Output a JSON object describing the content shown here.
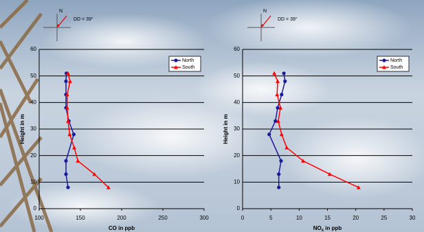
{
  "charts": [
    {
      "type": "line",
      "compass_label": "N",
      "compass_text": "DD = 39°",
      "x_label": "CO in ppb",
      "y_label": "Height in m",
      "xlim": [
        100,
        300
      ],
      "xticks": [
        100,
        150,
        200,
        250,
        300
      ],
      "ylim": [
        0,
        60
      ],
      "yticks": [
        0,
        10,
        20,
        30,
        40,
        50,
        60
      ],
      "grid": true,
      "legend": "top-right",
      "series": [
        {
          "name": "North",
          "color": "#1a1a9c",
          "marker": "circle",
          "x": [
            133,
            132.5,
            132.5,
            132.5,
            136,
            142,
            132.5,
            132.5,
            135
          ],
          "y": [
            51,
            48,
            43,
            38,
            33,
            28,
            18,
            13,
            8
          ]
        },
        {
          "name": "South",
          "color": "#ff0000",
          "marker": "triangle",
          "x": [
            135,
            137.5,
            134,
            134,
            135,
            137,
            142.5,
            147,
            167,
            184
          ],
          "y": [
            51,
            48,
            43,
            38,
            33,
            28,
            23,
            18,
            13,
            8
          ]
        }
      ]
    },
    {
      "type": "line",
      "compass_label": "N",
      "compass_text": "DD = 39°",
      "x_label": {
        "main": "NO",
        "sub": "x",
        "rest": " in ppb"
      },
      "y_label": "Height in m",
      "xlim": [
        0,
        30
      ],
      "xticks": [
        0,
        5,
        10,
        15,
        20,
        25,
        30
      ],
      "ylim": [
        0,
        60
      ],
      "yticks": [
        0,
        10,
        20,
        30,
        40,
        50,
        60
      ],
      "grid": true,
      "legend": "top-right",
      "series": [
        {
          "name": "North",
          "color": "#1a1a9c",
          "marker": "circle",
          "x": [
            7.3,
            7.5,
            6.9,
            6.2,
            5.8,
            4.7,
            6.8,
            6.4,
            6.4
          ],
          "y": [
            51,
            48,
            43,
            38,
            33,
            28,
            18,
            13,
            8
          ]
        },
        {
          "name": "South",
          "color": "#ff0000",
          "marker": "triangle",
          "x": [
            5.6,
            6.2,
            6.1,
            6.7,
            6.3,
            6.9,
            7.8,
            10.7,
            15.4,
            20.5
          ],
          "y": [
            51,
            48,
            43,
            38,
            33,
            28,
            23,
            18,
            13,
            8
          ]
        }
      ]
    }
  ]
}
